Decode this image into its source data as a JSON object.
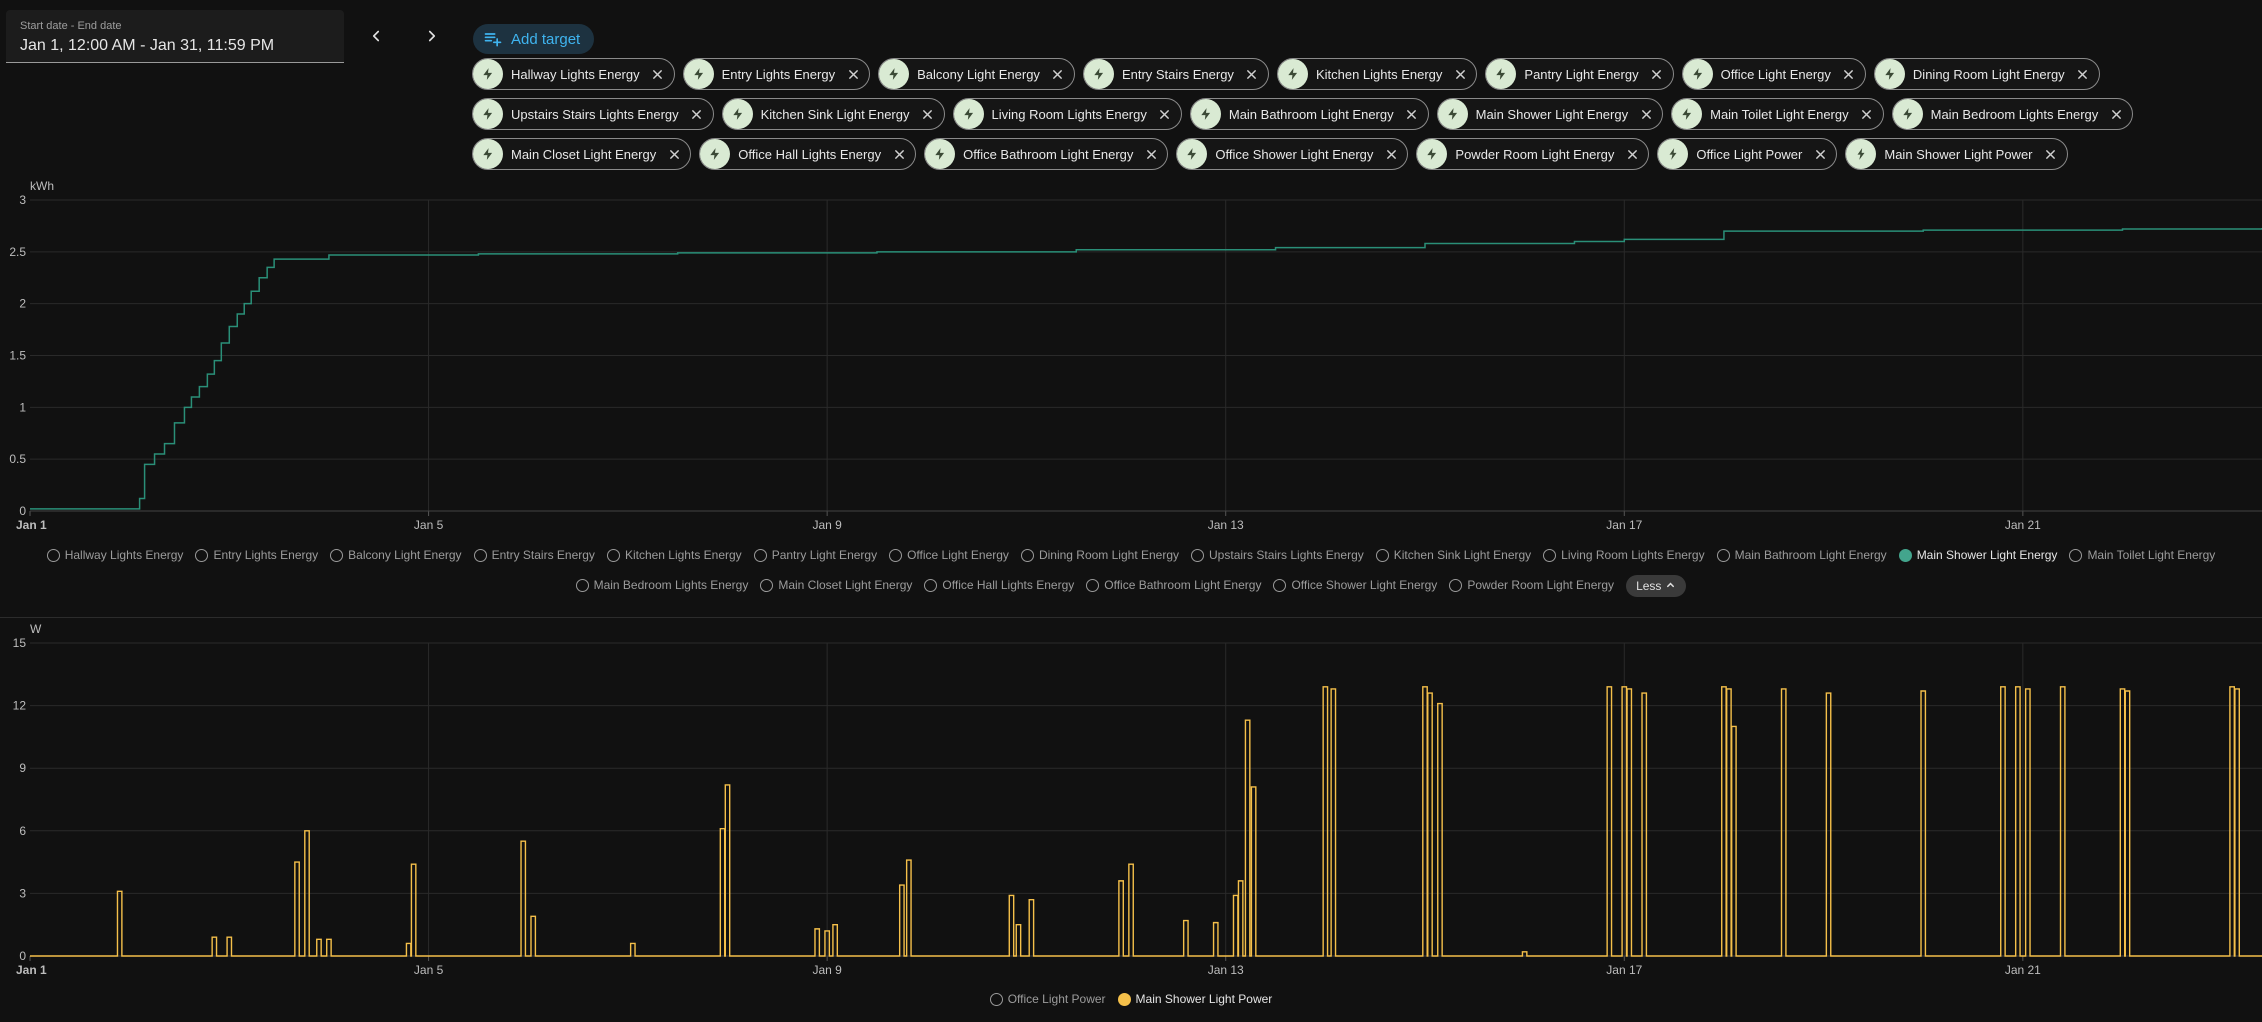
{
  "date_picker": {
    "label": "Start date - End date",
    "value": "Jan 1, 12:00 AM - Jan 31, 11:59 PM"
  },
  "add_target_label": "Add target",
  "targets": [
    {
      "label": "Hallway Lights Energy",
      "icon": "flash-icon"
    },
    {
      "label": "Entry Lights Energy",
      "icon": "flash-icon"
    },
    {
      "label": "Balcony Light Energy",
      "icon": "flash-icon"
    },
    {
      "label": "Entry Stairs Energy",
      "icon": "flash-icon"
    },
    {
      "label": "Kitchen Lights Energy",
      "icon": "flash-icon"
    },
    {
      "label": "Pantry Light Energy",
      "icon": "flash-icon"
    },
    {
      "label": "Office Light Energy",
      "icon": "flash-icon"
    },
    {
      "label": "Dining Room Light Energy",
      "icon": "flash-icon"
    },
    {
      "label": "Upstairs Stairs Lights Energy",
      "icon": "flash-icon"
    },
    {
      "label": "Kitchen Sink Light Energy",
      "icon": "flash-icon"
    },
    {
      "label": "Living Room Lights Energy",
      "icon": "flash-icon"
    },
    {
      "label": "Main Bathroom Light Energy",
      "icon": "flash-icon"
    },
    {
      "label": "Main Shower Light Energy",
      "icon": "flash-icon"
    },
    {
      "label": "Main Toilet Light Energy",
      "icon": "flash-icon"
    },
    {
      "label": "Main Bedroom Lights Energy",
      "icon": "flash-icon"
    },
    {
      "label": "Main Closet Light Energy",
      "icon": "flash-icon"
    },
    {
      "label": "Office Hall Lights Energy",
      "icon": "flash-icon"
    },
    {
      "label": "Office Bathroom Light Energy",
      "icon": "flash-icon"
    },
    {
      "label": "Office Shower Light Energy",
      "icon": "flash-icon"
    },
    {
      "label": "Powder Room Light Energy",
      "icon": "flash-icon"
    },
    {
      "label": "Office Light Power",
      "icon": "power-plug-icon"
    },
    {
      "label": "Main Shower Light Power",
      "icon": "power-plug-icon"
    }
  ],
  "energy_legend": [
    {
      "label": "Hallway Lights Energy",
      "active": false
    },
    {
      "label": "Entry Lights Energy",
      "active": false
    },
    {
      "label": "Balcony Light Energy",
      "active": false
    },
    {
      "label": "Entry Stairs Energy",
      "active": false
    },
    {
      "label": "Kitchen Lights Energy",
      "active": false
    },
    {
      "label": "Pantry Light Energy",
      "active": false
    },
    {
      "label": "Office Light Energy",
      "active": false
    },
    {
      "label": "Dining Room Light Energy",
      "active": false
    },
    {
      "label": "Upstairs Stairs Lights Energy",
      "active": false
    },
    {
      "label": "Kitchen Sink Light Energy",
      "active": false
    },
    {
      "label": "Living Room Lights Energy",
      "active": false
    },
    {
      "label": "Main Bathroom Light Energy",
      "active": false
    },
    {
      "label": "Main Shower Light Energy",
      "active": true
    },
    {
      "label": "Main Toilet Light Energy",
      "active": false
    },
    {
      "label": "Main Bedroom Lights Energy",
      "active": false
    },
    {
      "label": "Main Closet Light Energy",
      "active": false
    },
    {
      "label": "Office Hall Lights Energy",
      "active": false
    },
    {
      "label": "Office Bathroom Light Energy",
      "active": false
    },
    {
      "label": "Office Shower Light Energy",
      "active": false
    },
    {
      "label": "Powder Room Light Energy",
      "active": false
    }
  ],
  "less_label": "Less",
  "power_legend": [
    {
      "label": "Office Light Power",
      "active": false
    },
    {
      "label": "Main Shower Light Power",
      "active": true
    }
  ],
  "colors": {
    "energy_line": "#2a8f78",
    "energy_dot": "#43a58d",
    "power_line": "#f5c04a",
    "power_dim": "#a8874a",
    "grid": "#2a2a2a"
  },
  "chart_data": [
    {
      "type": "line",
      "ylabel": "kWh",
      "y_ticks": [
        "3",
        "2.5",
        "2",
        "1.5",
        "1",
        "0.5",
        "0"
      ],
      "ylim": [
        0,
        3
      ],
      "x_ticks": [
        "Jan 1",
        "Jan 5",
        "Jan 9",
        "Jan 13",
        "Jan 17",
        "Jan 21"
      ],
      "x_tick_days": [
        1,
        5,
        9,
        13,
        17,
        21
      ],
      "xlim_days": [
        1,
        23.4
      ],
      "series": [
        {
          "name": "Main Shower Light Energy",
          "step": true,
          "points": [
            [
              1,
              0.02
            ],
            [
              2.05,
              0.02
            ],
            [
              2.1,
              0.12
            ],
            [
              2.15,
              0.45
            ],
            [
              2.25,
              0.55
            ],
            [
              2.35,
              0.65
            ],
            [
              2.45,
              0.85
            ],
            [
              2.55,
              1.0
            ],
            [
              2.62,
              1.1
            ],
            [
              2.7,
              1.2
            ],
            [
              2.78,
              1.32
            ],
            [
              2.85,
              1.45
            ],
            [
              2.92,
              1.62
            ],
            [
              3.0,
              1.78
            ],
            [
              3.08,
              1.9
            ],
            [
              3.15,
              2.0
            ],
            [
              3.22,
              2.12
            ],
            [
              3.3,
              2.25
            ],
            [
              3.38,
              2.35
            ],
            [
              3.45,
              2.43
            ],
            [
              3.95,
              2.43
            ],
            [
              4.0,
              2.47
            ],
            [
              5.5,
              2.48
            ],
            [
              7.5,
              2.49
            ],
            [
              9.5,
              2.5
            ],
            [
              11.5,
              2.52
            ],
            [
              13.5,
              2.54
            ],
            [
              15.0,
              2.58
            ],
            [
              16.5,
              2.6
            ],
            [
              17.0,
              2.62
            ],
            [
              18.0,
              2.7
            ],
            [
              20.0,
              2.71
            ],
            [
              22.0,
              2.72
            ],
            [
              23.4,
              2.73
            ]
          ]
        }
      ]
    },
    {
      "type": "line",
      "ylabel": "W",
      "y_ticks": [
        "15",
        "12",
        "9",
        "6",
        "3",
        "0"
      ],
      "ylim": [
        0,
        15
      ],
      "x_ticks": [
        "Jan 1",
        "Jan 5",
        "Jan 9",
        "Jan 13",
        "Jan 17",
        "Jan 21"
      ],
      "x_tick_days": [
        1,
        5,
        9,
        13,
        17,
        21
      ],
      "xlim_days": [
        1,
        23.4
      ],
      "series": [
        {
          "name": "Main Shower Light Power",
          "spikes": [
            [
              1.9,
              3.1
            ],
            [
              2.85,
              0.9
            ],
            [
              3.0,
              0.9
            ],
            [
              3.68,
              4.5
            ],
            [
              3.78,
              6.0
            ],
            [
              3.9,
              0.8
            ],
            [
              4.0,
              0.8
            ],
            [
              4.8,
              0.6
            ],
            [
              4.85,
              4.4
            ],
            [
              5.95,
              5.5
            ],
            [
              6.05,
              1.9
            ],
            [
              7.05,
              0.6
            ],
            [
              7.95,
              6.1
            ],
            [
              8.0,
              8.2
            ],
            [
              8.9,
              1.3
            ],
            [
              9.0,
              1.2
            ],
            [
              9.08,
              1.5
            ],
            [
              9.75,
              3.4
            ],
            [
              9.82,
              4.6
            ],
            [
              10.85,
              2.9
            ],
            [
              10.92,
              1.5
            ],
            [
              11.05,
              2.7
            ],
            [
              11.95,
              3.6
            ],
            [
              12.05,
              4.4
            ],
            [
              12.6,
              1.7
            ],
            [
              12.9,
              1.6
            ],
            [
              13.1,
              2.9
            ],
            [
              13.15,
              3.6
            ],
            [
              13.22,
              11.3
            ],
            [
              13.28,
              8.1
            ],
            [
              14.0,
              12.9
            ],
            [
              14.08,
              12.8
            ],
            [
              15.0,
              12.9
            ],
            [
              15.05,
              12.6
            ],
            [
              15.15,
              12.1
            ],
            [
              16.0,
              0.2
            ],
            [
              16.85,
              12.9
            ],
            [
              17.0,
              12.9
            ],
            [
              17.05,
              12.8
            ],
            [
              17.2,
              12.6
            ],
            [
              18.0,
              12.9
            ],
            [
              18.05,
              12.8
            ],
            [
              18.1,
              11.0
            ],
            [
              18.6,
              12.8
            ],
            [
              19.05,
              12.6
            ],
            [
              20.0,
              12.7
            ],
            [
              20.8,
              12.9
            ],
            [
              20.95,
              12.9
            ],
            [
              21.05,
              12.8
            ],
            [
              21.4,
              12.9
            ],
            [
              22.0,
              12.8
            ],
            [
              22.05,
              12.7
            ],
            [
              23.1,
              12.9
            ],
            [
              23.15,
              12.8
            ]
          ]
        }
      ]
    }
  ]
}
